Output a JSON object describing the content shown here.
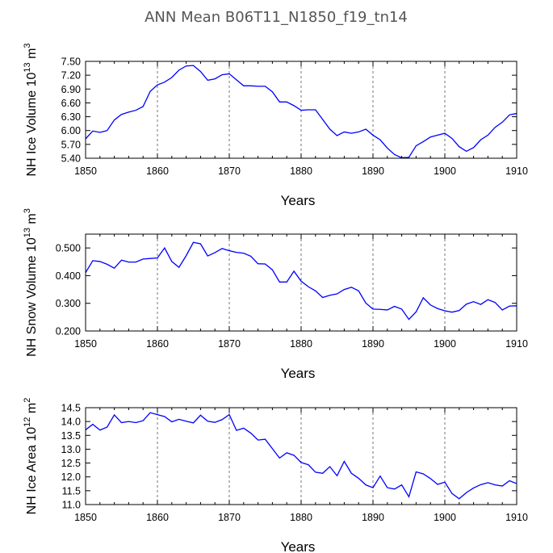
{
  "title": "ANN Mean B06T11_N1850_f19_tn14",
  "colors": {
    "series": "#0000ff",
    "axis": "#000000",
    "grid": "#555555"
  },
  "chart_data": [
    {
      "type": "line",
      "title": "",
      "xlabel": "Years",
      "ylabel": {
        "text": "NH Ice Volume 10",
        "exponent": "13",
        "unit_tail": " m",
        "unit_exponent": "3"
      },
      "xlim": [
        1850,
        1910
      ],
      "ylim": [
        5.4,
        7.5
      ],
      "xticks": [
        1850,
        1860,
        1870,
        1880,
        1890,
        1900,
        1910
      ],
      "yticks": [
        "5.40",
        "5.70",
        "6.00",
        "6.30",
        "6.60",
        "6.90",
        "7.20",
        "7.50"
      ],
      "grid": "dashed vertical at 1860, 1870, 1880, 1890, 1900",
      "x": [
        1850,
        1851,
        1852,
        1853,
        1854,
        1855,
        1856,
        1857,
        1858,
        1859,
        1860,
        1861,
        1862,
        1863,
        1864,
        1865,
        1866,
        1867,
        1868,
        1869,
        1870,
        1871,
        1872,
        1873,
        1874,
        1875,
        1876,
        1877,
        1878,
        1879,
        1880,
        1881,
        1882,
        1883,
        1884,
        1885,
        1886,
        1887,
        1888,
        1889,
        1890,
        1891,
        1892,
        1893,
        1894,
        1895,
        1896,
        1897,
        1898,
        1899,
        1900,
        1901,
        1902,
        1903,
        1904,
        1905,
        1906,
        1907,
        1908,
        1909,
        1910
      ],
      "values": [
        5.82,
        5.99,
        5.96,
        6.0,
        6.23,
        6.35,
        6.4,
        6.44,
        6.52,
        6.85,
        6.99,
        7.05,
        7.15,
        7.31,
        7.4,
        7.41,
        7.28,
        7.09,
        7.12,
        7.21,
        7.23,
        7.1,
        6.97,
        6.97,
        6.96,
        6.96,
        6.84,
        6.62,
        6.62,
        6.54,
        6.44,
        6.45,
        6.45,
        6.24,
        6.03,
        5.89,
        5.97,
        5.94,
        5.97,
        6.03,
        5.9,
        5.8,
        5.62,
        5.48,
        5.41,
        5.42,
        5.67,
        5.76,
        5.86,
        5.9,
        5.94,
        5.83,
        5.65,
        5.55,
        5.63,
        5.8,
        5.9,
        6.07,
        6.18,
        6.34,
        6.37
      ]
    },
    {
      "type": "line",
      "title": "",
      "xlabel": "Years",
      "ylabel": {
        "text": "NH Snow Volume 10",
        "exponent": "13",
        "unit_tail": " m",
        "unit_exponent": "3"
      },
      "xlim": [
        1850,
        1910
      ],
      "ylim": [
        0.2,
        0.55
      ],
      "xticks": [
        1850,
        1860,
        1870,
        1880,
        1890,
        1900,
        1910
      ],
      "yticks": [
        "0.200",
        "0.300",
        "0.400",
        "0.500"
      ],
      "grid": "dashed vertical at 1860, 1870, 1880, 1890, 1900",
      "x": [
        1850,
        1851,
        1852,
        1853,
        1854,
        1855,
        1856,
        1857,
        1858,
        1859,
        1860,
        1861,
        1862,
        1863,
        1864,
        1865,
        1866,
        1867,
        1868,
        1869,
        1870,
        1871,
        1872,
        1873,
        1874,
        1875,
        1876,
        1877,
        1878,
        1879,
        1880,
        1881,
        1882,
        1883,
        1884,
        1885,
        1886,
        1887,
        1888,
        1889,
        1890,
        1891,
        1892,
        1893,
        1894,
        1895,
        1896,
        1897,
        1898,
        1899,
        1900,
        1901,
        1902,
        1903,
        1904,
        1905,
        1906,
        1907,
        1908,
        1909,
        1910
      ],
      "values": [
        0.411,
        0.454,
        0.451,
        0.441,
        0.427,
        0.456,
        0.449,
        0.449,
        0.46,
        0.462,
        0.464,
        0.5,
        0.451,
        0.43,
        0.472,
        0.52,
        0.515,
        0.471,
        0.483,
        0.498,
        0.49,
        0.484,
        0.481,
        0.47,
        0.443,
        0.442,
        0.421,
        0.377,
        0.377,
        0.416,
        0.38,
        0.36,
        0.345,
        0.321,
        0.329,
        0.334,
        0.35,
        0.358,
        0.345,
        0.301,
        0.279,
        0.278,
        0.276,
        0.289,
        0.279,
        0.242,
        0.269,
        0.32,
        0.294,
        0.281,
        0.273,
        0.268,
        0.274,
        0.297,
        0.306,
        0.296,
        0.313,
        0.303,
        0.276,
        0.29,
        0.291
      ]
    },
    {
      "type": "line",
      "title": "",
      "xlabel": "Years",
      "ylabel": {
        "text": "NH Ice Area 10",
        "exponent": "12",
        "unit_tail": " m",
        "unit_exponent": "2"
      },
      "xlim": [
        1850,
        1910
      ],
      "ylim": [
        11.0,
        14.5
      ],
      "xticks": [
        1850,
        1860,
        1870,
        1880,
        1890,
        1900,
        1910
      ],
      "yticks": [
        "11.0",
        "11.5",
        "12.0",
        "12.5",
        "13.0",
        "13.5",
        "14.0",
        "14.5"
      ],
      "grid": "dashed vertical at 1860, 1870, 1880, 1890, 1900",
      "x": [
        1850,
        1851,
        1852,
        1853,
        1854,
        1855,
        1856,
        1857,
        1858,
        1859,
        1860,
        1861,
        1862,
        1863,
        1864,
        1865,
        1866,
        1867,
        1868,
        1869,
        1870,
        1871,
        1872,
        1873,
        1874,
        1875,
        1876,
        1877,
        1878,
        1879,
        1880,
        1881,
        1882,
        1883,
        1884,
        1885,
        1886,
        1887,
        1888,
        1889,
        1890,
        1891,
        1892,
        1893,
        1894,
        1895,
        1896,
        1897,
        1898,
        1899,
        1900,
        1901,
        1902,
        1903,
        1904,
        1905,
        1906,
        1907,
        1908,
        1909,
        1910
      ],
      "values": [
        13.7,
        13.9,
        13.69,
        13.8,
        14.24,
        13.96,
        14.0,
        13.96,
        14.03,
        14.32,
        14.25,
        14.18,
        13.99,
        14.08,
        14.01,
        13.95,
        14.23,
        14.01,
        13.97,
        14.07,
        14.25,
        13.68,
        13.76,
        13.58,
        13.33,
        13.36,
        13.02,
        12.68,
        12.87,
        12.78,
        12.52,
        12.44,
        12.17,
        12.13,
        12.37,
        12.04,
        12.56,
        12.13,
        11.95,
        11.71,
        11.61,
        12.03,
        11.61,
        11.56,
        11.71,
        11.28,
        12.18,
        12.11,
        11.94,
        11.73,
        11.81,
        11.4,
        11.21,
        11.43,
        11.6,
        11.72,
        11.79,
        11.71,
        11.67,
        11.86,
        11.76
      ]
    }
  ]
}
